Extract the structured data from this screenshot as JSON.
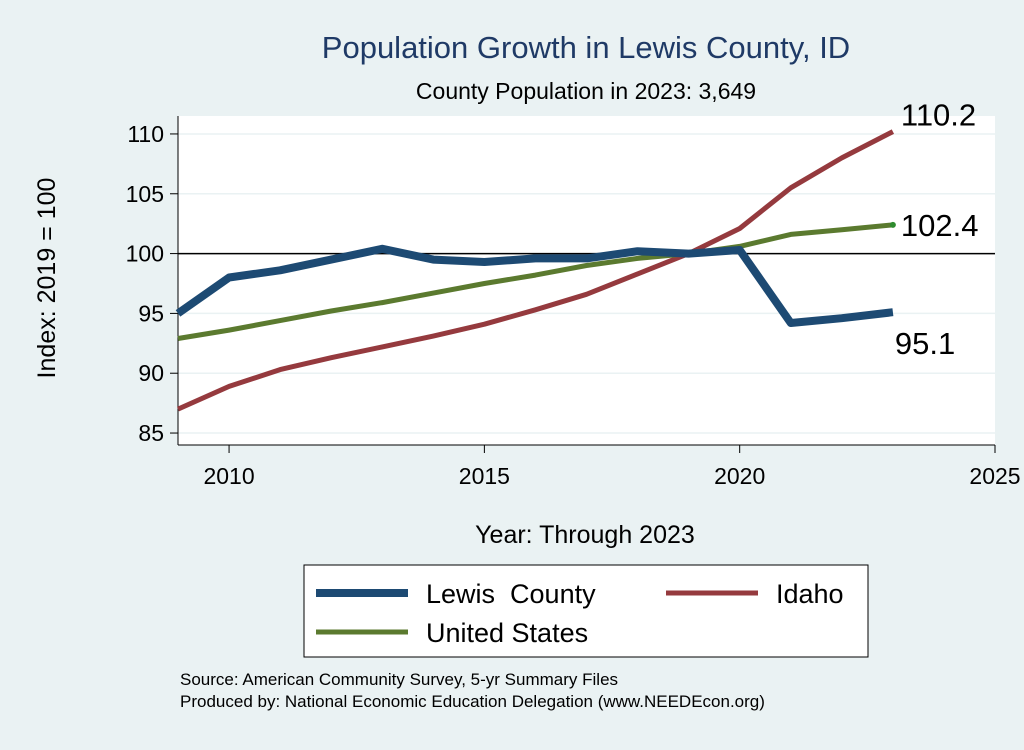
{
  "chart_data": {
    "type": "line",
    "title": "Population Growth in Lewis County, ID",
    "subtitle": "County Population in 2023: 3,649",
    "xlabel": "Year: Through 2023",
    "ylabel": "Index: 2019 = 100",
    "xlim": [
      2009,
      2025
    ],
    "ylim": [
      84,
      111.5
    ],
    "xticks": [
      2010,
      2015,
      2020,
      2025
    ],
    "yticks": [
      85,
      90,
      95,
      100,
      105,
      110
    ],
    "reference_line": 100,
    "grid": true,
    "legend_position": "bottom",
    "x": [
      2009,
      2010,
      2011,
      2012,
      2013,
      2014,
      2015,
      2016,
      2017,
      2018,
      2019,
      2020,
      2021,
      2022,
      2023
    ],
    "series": [
      {
        "name": "Lewis  County",
        "color": "#1d4a73",
        "values": [
          95.0,
          98.0,
          98.6,
          99.5,
          100.4,
          99.5,
          99.3,
          99.6,
          99.6,
          100.2,
          100.0,
          100.3,
          94.2,
          94.6,
          95.1
        ],
        "end_label": "95.1"
      },
      {
        "name": "Idaho",
        "color": "#953a3e",
        "values": [
          87.0,
          88.9,
          90.3,
          91.3,
          92.2,
          93.1,
          94.1,
          95.3,
          96.6,
          98.3,
          100.0,
          102.1,
          105.5,
          108.0,
          110.2
        ],
        "end_label": "110.2"
      },
      {
        "name": "United States",
        "color": "#5b7a2f",
        "values": [
          92.9,
          93.6,
          94.4,
          95.2,
          95.9,
          96.7,
          97.5,
          98.2,
          99.0,
          99.6,
          100.0,
          100.6,
          101.6,
          102.0,
          102.4
        ],
        "end_label": "102.4"
      }
    ]
  },
  "footer": {
    "source": "Source: American Community Survey, 5-yr Summary Files",
    "produced": "Produced by: National Economic Education Delegation (www.NEEDEcon.org)"
  }
}
